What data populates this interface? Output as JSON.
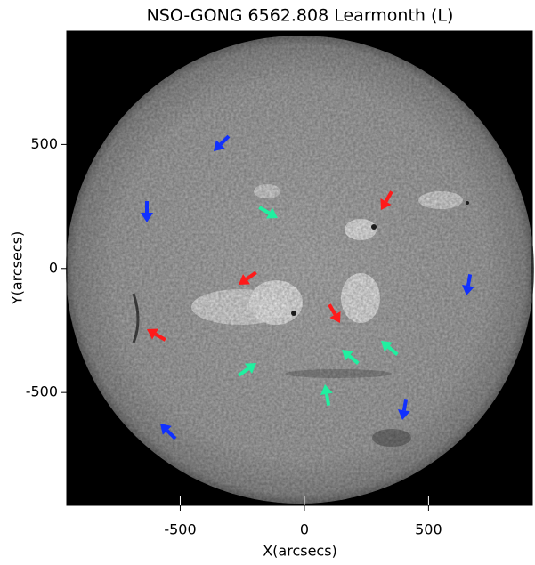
{
  "chart_data": {
    "type": "image",
    "title": "NSO-GONG 6562.808 Learmonth (L)",
    "x_label": "X(arcsecs)",
    "y_label": "Y(arcsecs)",
    "xlim": [
      -957,
      918
    ],
    "ylim": [
      -955,
      957
    ],
    "xticks": [
      -500,
      0,
      500
    ],
    "yticks": [
      -500,
      0,
      500
    ]
  }
}
